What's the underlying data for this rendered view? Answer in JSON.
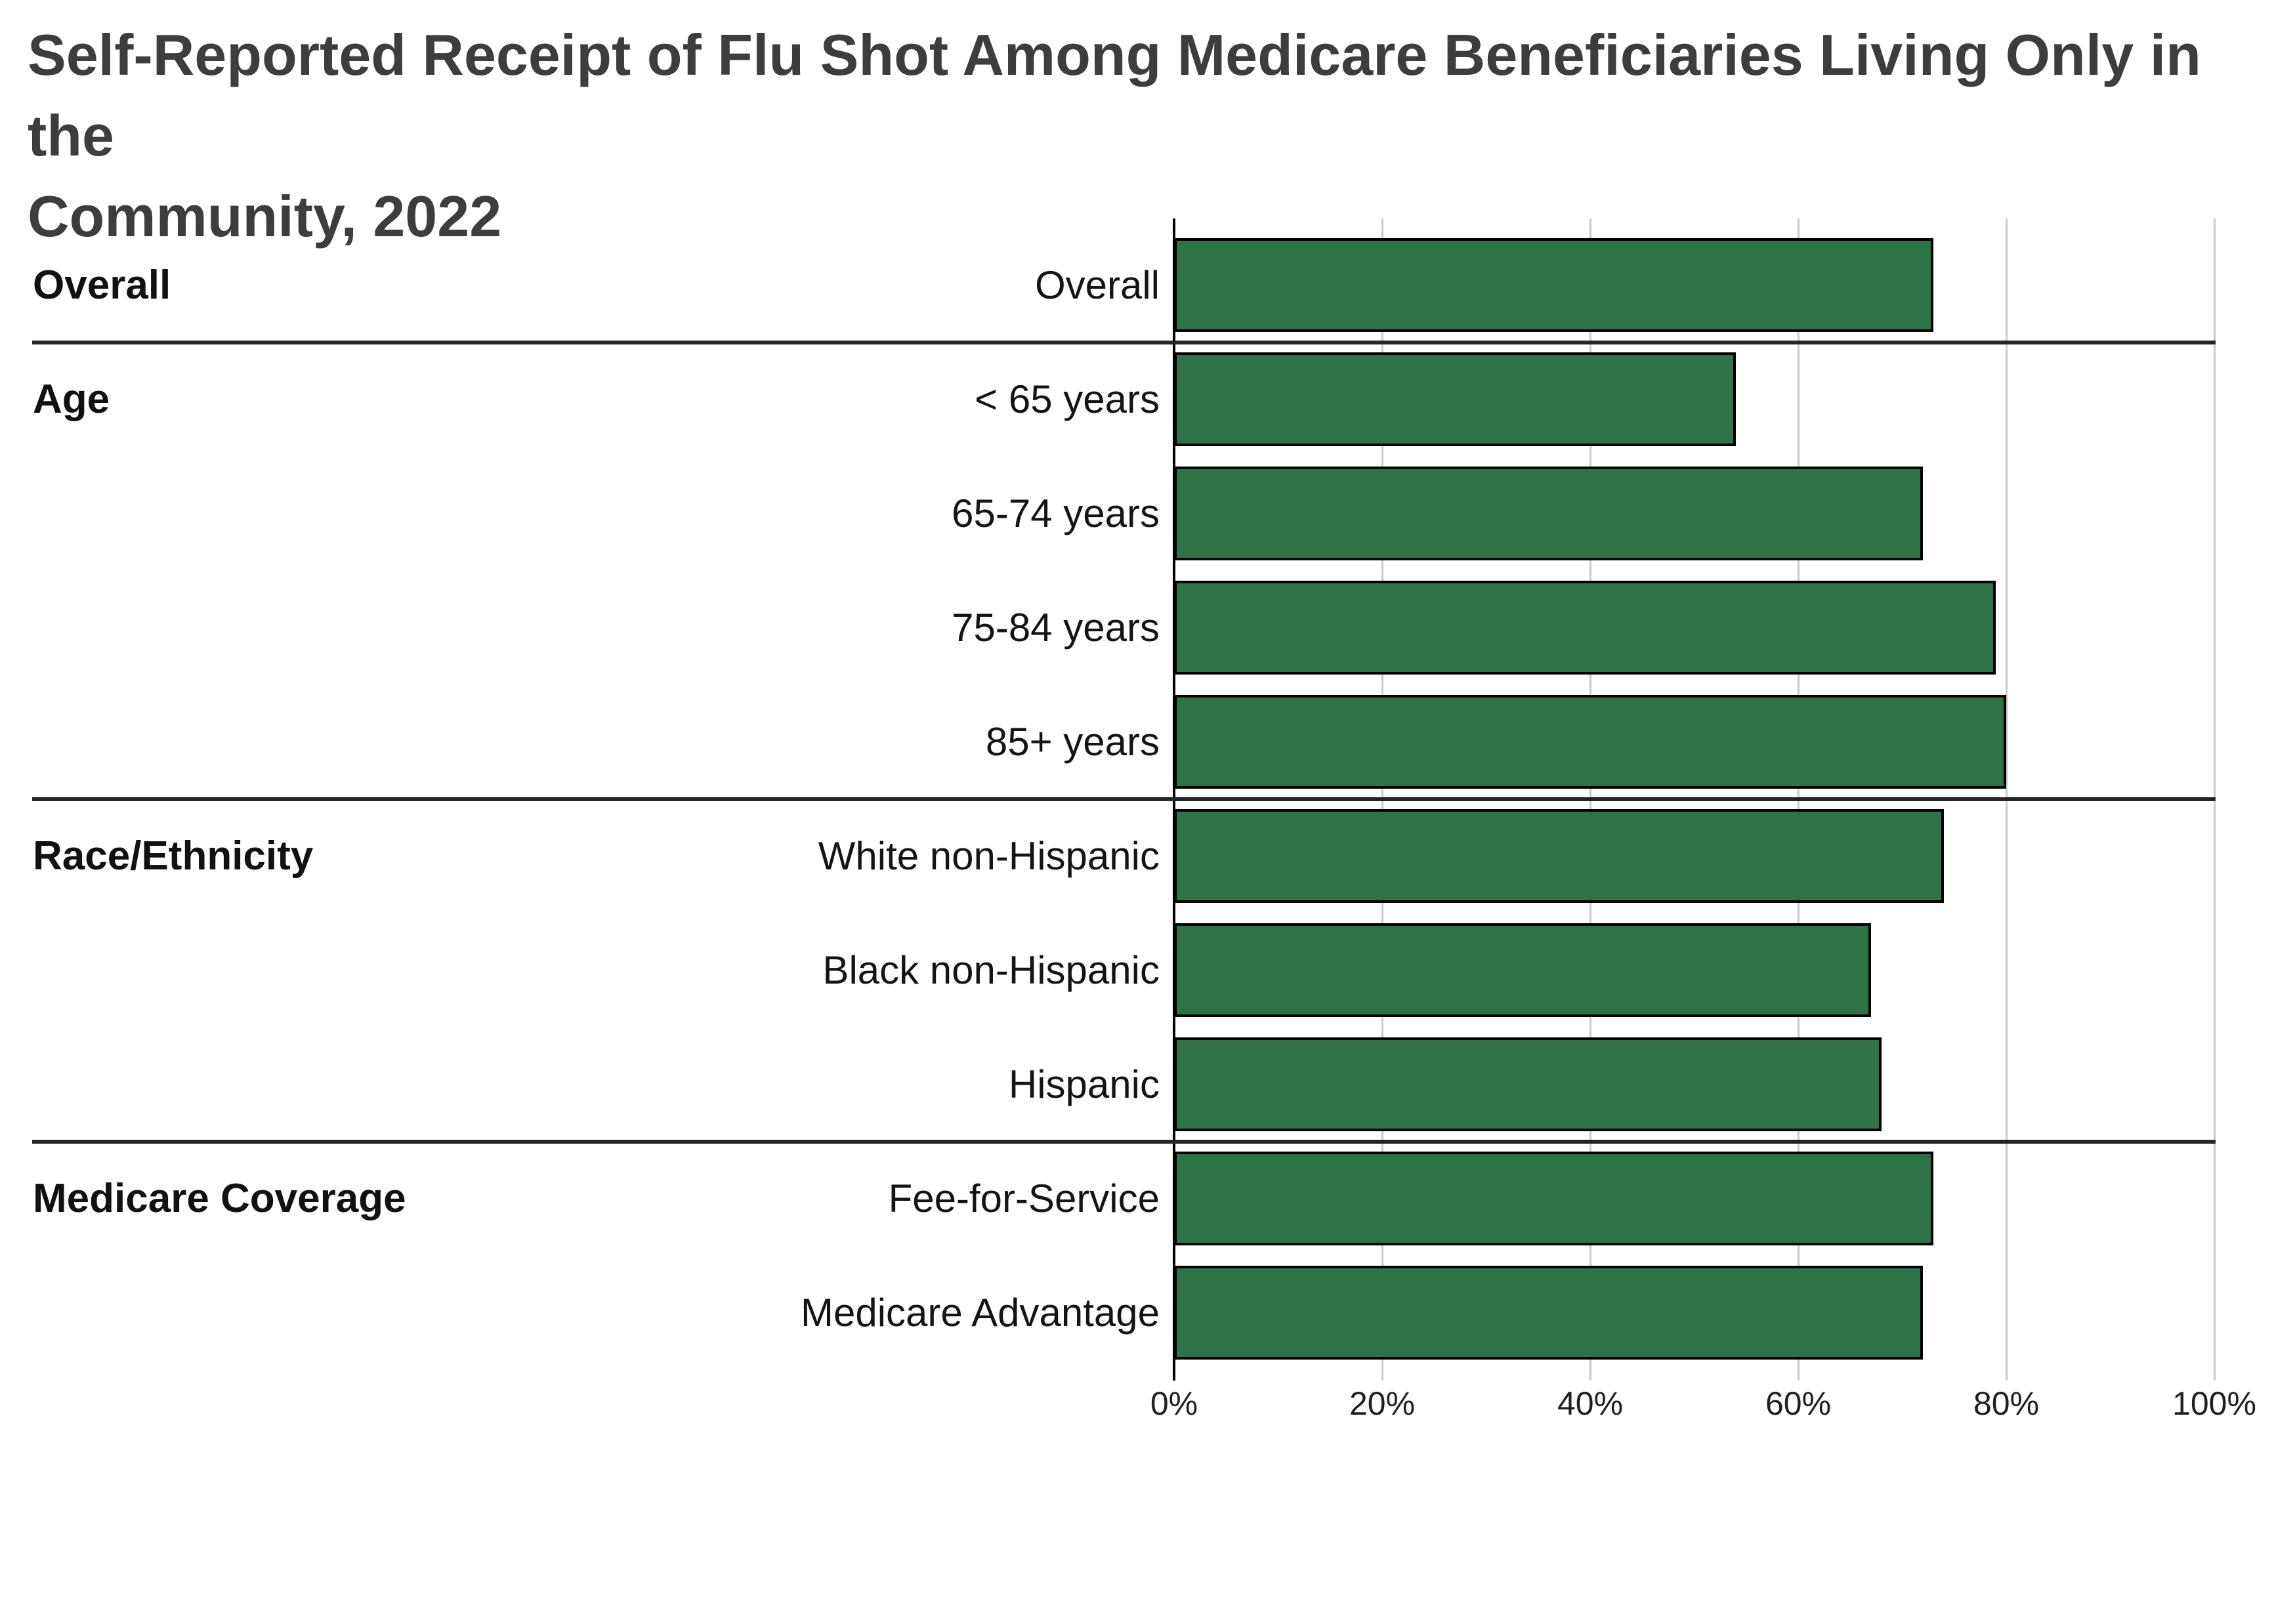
{
  "title": {
    "line1": "Self-Reported Receipt of Flu Shot Among Medicare Beneficiaries Living Only in the",
    "line2": "Community, 2022"
  },
  "chart_data": {
    "type": "bar",
    "orientation": "horizontal",
    "unit": "percent",
    "xlim": [
      0,
      100
    ],
    "x_ticks": [
      "0%",
      "20%",
      "40%",
      "60%",
      "80%",
      "100%"
    ],
    "grid": true,
    "legend": "none",
    "bar_color": "#2E7347",
    "bar_border_color": "#000000",
    "gridline_color": "#C9C9C9",
    "groups": [
      {
        "label": "Overall",
        "rows": [
          {
            "category": "Overall",
            "value": 73
          }
        ]
      },
      {
        "label": "Age",
        "rows": [
          {
            "category": "< 65 years",
            "value": 54
          },
          {
            "category": "65-74 years",
            "value": 72
          },
          {
            "category": "75-84 years",
            "value": 79
          },
          {
            "category": "85+ years",
            "value": 80
          }
        ]
      },
      {
        "label": "Race/Ethnicity",
        "rows": [
          {
            "category": "White non-Hispanic",
            "value": 74
          },
          {
            "category": "Black non-Hispanic",
            "value": 67
          },
          {
            "category": "Hispanic",
            "value": 68
          }
        ]
      },
      {
        "label": "Medicare Coverage",
        "rows": [
          {
            "category": "Fee-for-Service",
            "value": 73
          },
          {
            "category": "Medicare Advantage",
            "value": 72
          }
        ]
      }
    ]
  }
}
